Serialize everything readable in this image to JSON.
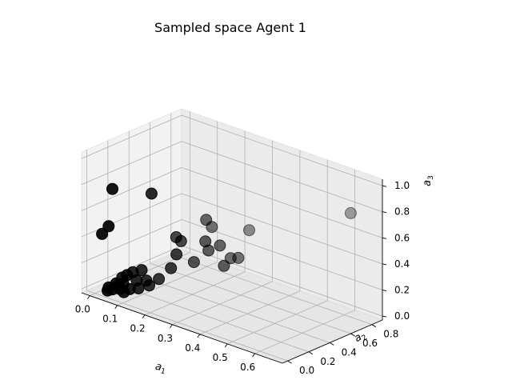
{
  "chart_data": {
    "type": "scatter",
    "projection": "3d",
    "title": "Sampled space Agent 1",
    "xlabel": "a_1",
    "ylabel": "a_2",
    "zlabel": "a_3",
    "xlim": [
      -0.03,
      0.7
    ],
    "ylim": [
      -0.05,
      0.9
    ],
    "zlim": [
      -0.03,
      1.05
    ],
    "xticks": [
      "0.0",
      "0.1",
      "0.2",
      "0.3",
      "0.4",
      "0.5",
      "0.6"
    ],
    "yticks": [
      "0.0",
      "0.2",
      "0.4",
      "0.6",
      "0.8"
    ],
    "zticks": [
      "0.0",
      "0.2",
      "0.4",
      "0.6",
      "0.8",
      "1.0"
    ],
    "grid": true,
    "marker_color": "#000000",
    "pane_color": "#f2f2f2",
    "series": [
      {
        "points": [
          [
            0.04,
            0.06,
            0.78
          ],
          [
            0.03,
            0.05,
            0.49
          ],
          [
            0.01,
            0.04,
            0.42
          ],
          [
            0.14,
            0.17,
            0.78
          ],
          [
            0.18,
            0.3,
            0.43
          ],
          [
            0.19,
            0.32,
            0.4
          ],
          [
            0.2,
            0.25,
            0.33
          ],
          [
            0.22,
            0.48,
            0.53
          ],
          [
            0.24,
            0.42,
            0.4
          ],
          [
            0.27,
            0.48,
            0.37
          ],
          [
            0.3,
            0.44,
            0.25
          ],
          [
            0.29,
            0.53,
            0.27
          ],
          [
            0.31,
            0.55,
            0.28
          ],
          [
            0.24,
            0.45,
            0.32
          ],
          [
            0.21,
            0.56,
            0.44
          ],
          [
            0.3,
            0.68,
            0.44
          ],
          [
            0.21,
            0.39,
            0.23
          ],
          [
            0.18,
            0.25,
            0.21
          ],
          [
            0.06,
            0.1,
            0.1
          ],
          [
            0.07,
            0.12,
            0.12
          ],
          [
            0.08,
            0.15,
            0.14
          ],
          [
            0.1,
            0.18,
            0.16
          ],
          [
            0.06,
            0.11,
            0.05
          ],
          [
            0.05,
            0.09,
            0.04
          ],
          [
            0.11,
            0.2,
            0.08
          ],
          [
            0.14,
            0.24,
            0.1
          ],
          [
            0.09,
            0.16,
            0.08
          ],
          [
            0.06,
            0.08,
            0.02
          ],
          [
            0.05,
            0.07,
            0.06
          ],
          [
            0.03,
            0.05,
            0.02
          ],
          [
            0.04,
            0.06,
            0.01
          ],
          [
            0.03,
            0.04,
            0.0
          ],
          [
            0.07,
            0.09,
            0.0
          ],
          [
            0.1,
            0.15,
            0.03
          ],
          [
            0.08,
            0.12,
            0.02
          ],
          [
            0.12,
            0.2,
            0.05
          ],
          [
            0.6,
            0.86,
            0.73
          ]
        ]
      }
    ]
  }
}
